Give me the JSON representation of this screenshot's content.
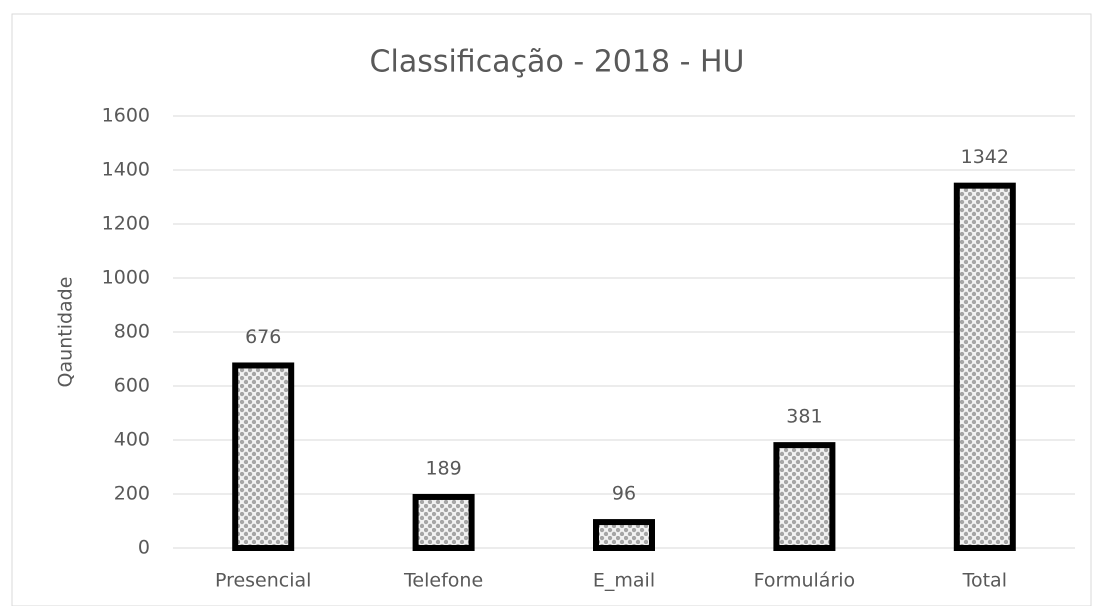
{
  "chart_data": {
    "type": "bar",
    "title": "Classificação - 2018 - HU",
    "ylabel": "Qauntidade",
    "categories": [
      "Presencial",
      "Telefone",
      "E_mail",
      "Formulário",
      "Total"
    ],
    "values": [
      676,
      189,
      96,
      381,
      1342
    ],
    "color": "#a6a6a6",
    "edgecolor": "#000000",
    "ylim": [
      0,
      1600
    ],
    "yticks": [
      0,
      200,
      400,
      600,
      800,
      1000,
      1200,
      1400,
      1600
    ],
    "grid": true
  }
}
